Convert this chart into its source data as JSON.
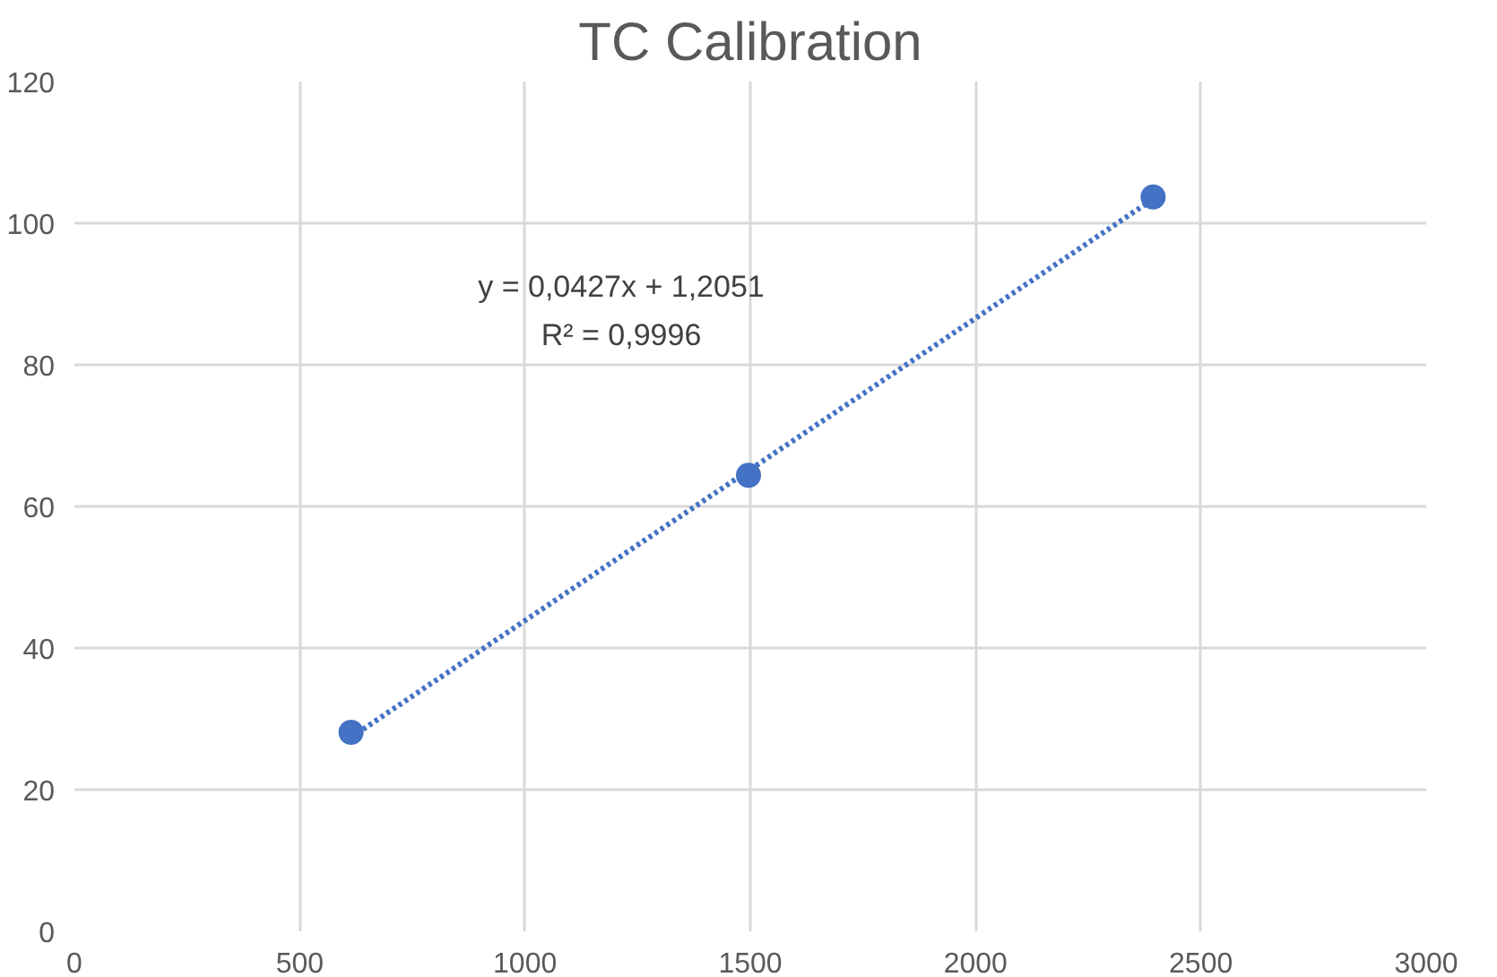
{
  "chart_data": {
    "type": "scatter",
    "title": "TC Calibration",
    "series": [
      {
        "color": "#4472c4",
        "x": [
          614,
          1496,
          2394
        ],
        "values": [
          28.1,
          64.4,
          103.7
        ],
        "marker": "circle"
      },
      {
        "type": "line",
        "color": "#4472c4",
        "x": [
          614,
          2394
        ],
        "values": [
          27.4,
          103.4
        ],
        "line_style": "dotted"
      }
    ],
    "annotations": [
      "y = 0,0427x + 1,2051",
      "R² = 0,9996"
    ],
    "xlim": [
      0,
      3000
    ],
    "xticks": [
      0,
      500,
      1000,
      1500,
      2000,
      2500,
      3000
    ],
    "ylim": [
      0,
      120
    ],
    "yticks": [
      0,
      20,
      40,
      60,
      80,
      100,
      120
    ],
    "grid": true
  }
}
